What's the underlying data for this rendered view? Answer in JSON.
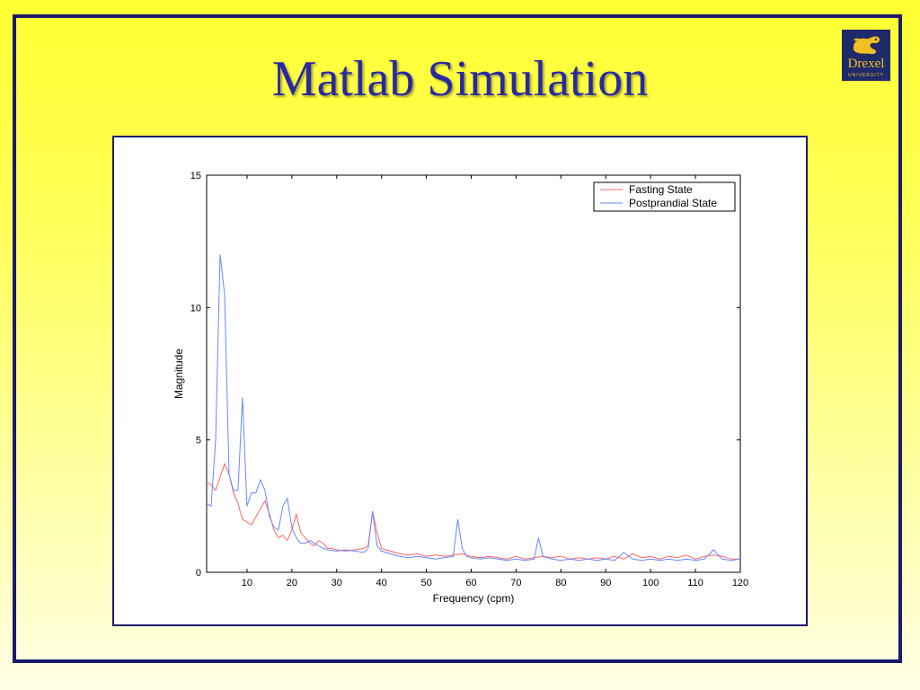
{
  "slide": {
    "title": "Matlab Simulation"
  },
  "logo": {
    "wordmark": "Drexel",
    "subtitle": "UNIVERSITY",
    "icon": "dragon-icon",
    "colors": {
      "background": "#1f2a6b",
      "foreground": "#f0c020"
    }
  },
  "colors": {
    "title": "#2929a3",
    "frame": "#1a1a6e",
    "fasting": "#ff6666",
    "postprandial": "#6688ff"
  },
  "chart_data": {
    "type": "line",
    "title": "",
    "xlabel": "Frequency (cpm)",
    "ylabel": "Magnitude",
    "xlim": [
      1,
      120
    ],
    "ylim": [
      0,
      15
    ],
    "xticks": [
      10,
      20,
      30,
      40,
      50,
      60,
      70,
      80,
      90,
      100,
      110,
      120
    ],
    "yticks": [
      0,
      5,
      10,
      15
    ],
    "grid": false,
    "legend": "top-right",
    "series": [
      {
        "name": "Fasting State",
        "color": "#ff6666",
        "points": [
          [
            1,
            3.4
          ],
          [
            2,
            3.3
          ],
          [
            3,
            3.1
          ],
          [
            4,
            3.6
          ],
          [
            5,
            4.1
          ],
          [
            6,
            3.7
          ],
          [
            7,
            3.0
          ],
          [
            8,
            2.6
          ],
          [
            9,
            2.0
          ],
          [
            10,
            1.9
          ],
          [
            11,
            1.8
          ],
          [
            12,
            2.1
          ],
          [
            13,
            2.4
          ],
          [
            14,
            2.7
          ],
          [
            15,
            2.2
          ],
          [
            16,
            1.6
          ],
          [
            17,
            1.3
          ],
          [
            18,
            1.4
          ],
          [
            19,
            1.2
          ],
          [
            20,
            1.6
          ],
          [
            21,
            2.2
          ],
          [
            22,
            1.5
          ],
          [
            23,
            1.3
          ],
          [
            24,
            1.1
          ],
          [
            25,
            1.0
          ],
          [
            26,
            1.2
          ],
          [
            27,
            1.1
          ],
          [
            28,
            0.9
          ],
          [
            29,
            0.9
          ],
          [
            30,
            0.85
          ],
          [
            32,
            0.8
          ],
          [
            34,
            0.85
          ],
          [
            36,
            0.9
          ],
          [
            37,
            1.0
          ],
          [
            38,
            2.3
          ],
          [
            39,
            1.5
          ],
          [
            40,
            0.9
          ],
          [
            42,
            0.8
          ],
          [
            44,
            0.7
          ],
          [
            46,
            0.65
          ],
          [
            48,
            0.7
          ],
          [
            50,
            0.6
          ],
          [
            52,
            0.65
          ],
          [
            54,
            0.6
          ],
          [
            56,
            0.65
          ],
          [
            58,
            0.7
          ],
          [
            60,
            0.6
          ],
          [
            62,
            0.55
          ],
          [
            64,
            0.6
          ],
          [
            66,
            0.55
          ],
          [
            68,
            0.5
          ],
          [
            70,
            0.6
          ],
          [
            72,
            0.5
          ],
          [
            74,
            0.55
          ],
          [
            76,
            0.6
          ],
          [
            78,
            0.55
          ],
          [
            80,
            0.6
          ],
          [
            82,
            0.5
          ],
          [
            84,
            0.55
          ],
          [
            86,
            0.5
          ],
          [
            88,
            0.55
          ],
          [
            90,
            0.5
          ],
          [
            92,
            0.6
          ],
          [
            94,
            0.5
          ],
          [
            96,
            0.7
          ],
          [
            98,
            0.55
          ],
          [
            100,
            0.6
          ],
          [
            102,
            0.5
          ],
          [
            104,
            0.6
          ],
          [
            106,
            0.55
          ],
          [
            108,
            0.65
          ],
          [
            110,
            0.5
          ],
          [
            112,
            0.6
          ],
          [
            114,
            0.65
          ],
          [
            116,
            0.6
          ],
          [
            118,
            0.5
          ],
          [
            120,
            0.5
          ]
        ]
      },
      {
        "name": "Postprandial State",
        "color": "#6688ff",
        "points": [
          [
            1,
            2.6
          ],
          [
            2,
            2.5
          ],
          [
            3,
            5.0
          ],
          [
            4,
            12.0
          ],
          [
            5,
            10.5
          ],
          [
            6,
            3.7
          ],
          [
            7,
            3.1
          ],
          [
            8,
            3.1
          ],
          [
            9,
            6.6
          ],
          [
            10,
            2.5
          ],
          [
            11,
            3.0
          ],
          [
            12,
            3.0
          ],
          [
            13,
            3.5
          ],
          [
            14,
            3.1
          ],
          [
            15,
            2.1
          ],
          [
            16,
            1.7
          ],
          [
            17,
            1.6
          ],
          [
            18,
            2.5
          ],
          [
            19,
            2.8
          ],
          [
            20,
            1.7
          ],
          [
            21,
            1.3
          ],
          [
            22,
            1.1
          ],
          [
            23,
            1.1
          ],
          [
            24,
            1.2
          ],
          [
            25,
            1.1
          ],
          [
            26,
            1.0
          ],
          [
            27,
            0.9
          ],
          [
            28,
            0.85
          ],
          [
            30,
            0.8
          ],
          [
            32,
            0.85
          ],
          [
            34,
            0.8
          ],
          [
            36,
            0.75
          ],
          [
            37,
            0.9
          ],
          [
            38,
            2.3
          ],
          [
            39,
            1.0
          ],
          [
            40,
            0.8
          ],
          [
            42,
            0.7
          ],
          [
            44,
            0.6
          ],
          [
            46,
            0.55
          ],
          [
            48,
            0.6
          ],
          [
            50,
            0.55
          ],
          [
            52,
            0.5
          ],
          [
            54,
            0.55
          ],
          [
            56,
            0.6
          ],
          [
            57,
            2.0
          ],
          [
            58,
            0.9
          ],
          [
            59,
            0.6
          ],
          [
            60,
            0.55
          ],
          [
            62,
            0.5
          ],
          [
            64,
            0.55
          ],
          [
            66,
            0.5
          ],
          [
            68,
            0.45
          ],
          [
            70,
            0.5
          ],
          [
            72,
            0.45
          ],
          [
            74,
            0.5
          ],
          [
            75,
            1.3
          ],
          [
            76,
            0.6
          ],
          [
            78,
            0.5
          ],
          [
            80,
            0.45
          ],
          [
            82,
            0.5
          ],
          [
            84,
            0.45
          ],
          [
            86,
            0.5
          ],
          [
            88,
            0.45
          ],
          [
            90,
            0.5
          ],
          [
            92,
            0.45
          ],
          [
            94,
            0.75
          ],
          [
            96,
            0.5
          ],
          [
            98,
            0.45
          ],
          [
            100,
            0.5
          ],
          [
            102,
            0.45
          ],
          [
            104,
            0.5
          ],
          [
            106,
            0.45
          ],
          [
            108,
            0.5
          ],
          [
            110,
            0.45
          ],
          [
            112,
            0.5
          ],
          [
            114,
            0.85
          ],
          [
            116,
            0.5
          ],
          [
            118,
            0.45
          ],
          [
            120,
            0.5
          ]
        ]
      }
    ]
  }
}
